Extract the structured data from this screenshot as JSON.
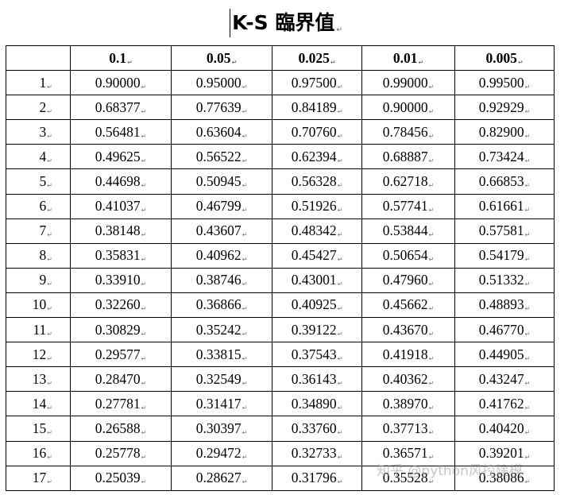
{
  "title": "K-S 臨界值",
  "table": {
    "headers": [
      "",
      "0.1",
      "0.05",
      "0.025",
      "0.01",
      "0.005"
    ],
    "rows": [
      [
        "1",
        "0.90000",
        "0.95000",
        "0.97500",
        "0.99000",
        "0.99500"
      ],
      [
        "2",
        "0.68377",
        "0.77639",
        "0.84189",
        "0.90000",
        "0.92929"
      ],
      [
        "3",
        "0.56481",
        "0.63604",
        "0.70760",
        "0.78456",
        "0.82900"
      ],
      [
        "4",
        "0.49625",
        "0.56522",
        "0.62394",
        "0.68887",
        "0.73424"
      ],
      [
        "5",
        "0.44698",
        "0.50945",
        "0.56328",
        "0.62718",
        "0.66853"
      ],
      [
        "6",
        "0.41037",
        "0.46799",
        "0.51926",
        "0.57741",
        "0.61661"
      ],
      [
        "7",
        "0.38148",
        "0.43607",
        "0.48342",
        "0.53844",
        "0.57581"
      ],
      [
        "8",
        "0.35831",
        "0.40962",
        "0.45427",
        "0.50654",
        "0.54179"
      ],
      [
        "9",
        "0.33910",
        "0.38746",
        "0.43001",
        "0.47960",
        "0.51332"
      ],
      [
        "10",
        "0.32260",
        "0.36866",
        "0.40925",
        "0.45662",
        "0.48893"
      ],
      [
        "11",
        "0.30829",
        "0.35242",
        "0.39122",
        "0.43670",
        "0.46770"
      ],
      [
        "12",
        "0.29577",
        "0.33815",
        "0.37543",
        "0.41918",
        "0.44905"
      ],
      [
        "13",
        "0.28470",
        "0.32549",
        "0.36143",
        "0.40362",
        "0.43247"
      ],
      [
        "14",
        "0.27781",
        "0.31417",
        "0.34890",
        "0.38970",
        "0.41762"
      ],
      [
        "15",
        "0.26588",
        "0.30397",
        "0.33760",
        "0.37713",
        "0.40420"
      ],
      [
        "16",
        "0.25778",
        "0.29472",
        "0.32733",
        "0.36571",
        "0.39201"
      ],
      [
        "17",
        "0.25039",
        "0.28627",
        "0.31796",
        "0.35528",
        "0.38086"
      ]
    ]
  },
  "paragraph_mark": "↵",
  "watermark": "知乎 @python风控建模"
}
